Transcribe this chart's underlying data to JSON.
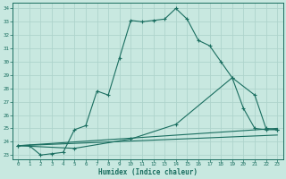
{
  "xlabel": "Humidex (Indice chaleur)",
  "background_color": "#c8e8e0",
  "grid_color": "#aed4cc",
  "line_color": "#1a6e60",
  "yticks": [
    23,
    24,
    25,
    26,
    27,
    28,
    29,
    30,
    31,
    32,
    33,
    34
  ],
  "xticks": [
    0,
    1,
    2,
    3,
    4,
    5,
    6,
    7,
    8,
    9,
    10,
    11,
    12,
    13,
    14,
    15,
    16,
    17,
    18,
    19,
    20,
    21,
    22,
    23
  ],
  "xlim": [
    -0.5,
    23.5
  ],
  "ylim": [
    22.7,
    34.4
  ],
  "line1_x": [
    0,
    1,
    2,
    3,
    4,
    5,
    6,
    7,
    8,
    9,
    10,
    11,
    12,
    13,
    14,
    15,
    16,
    17,
    18,
    19,
    20,
    21,
    22,
    23
  ],
  "line1_y": [
    23.7,
    23.7,
    23.0,
    23.1,
    23.2,
    24.9,
    25.2,
    27.8,
    27.5,
    30.3,
    33.1,
    33.0,
    33.1,
    33.2,
    34.0,
    33.2,
    31.6,
    31.2,
    30.0,
    28.8,
    26.5,
    25.0,
    24.9,
    24.9
  ],
  "line2_x": [
    0,
    5,
    10,
    14,
    19,
    21,
    22,
    23
  ],
  "line2_y": [
    23.7,
    23.5,
    24.2,
    25.3,
    28.8,
    27.5,
    25.0,
    24.9
  ],
  "line3_x": [
    0,
    23
  ],
  "line3_y": [
    23.7,
    25.0
  ],
  "line4_x": [
    0,
    23
  ],
  "line4_y": [
    23.7,
    24.5
  ]
}
